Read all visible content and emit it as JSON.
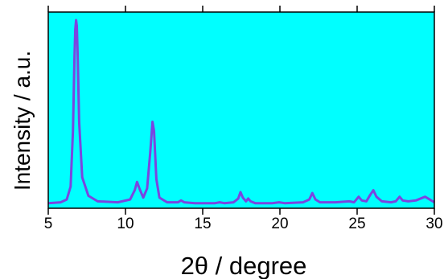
{
  "chart_data": {
    "type": "line",
    "title": "",
    "xlabel": "2θ  / degree",
    "ylabel": "Intensity  / a.u.",
    "xlim": [
      5,
      30
    ],
    "ylim": [
      0,
      100
    ],
    "y_ticks_shown": false,
    "grid": false,
    "plot_background": "#00FFFF",
    "line_color": "#7B45E0",
    "x_ticks": [
      5,
      10,
      15,
      20,
      25,
      30
    ],
    "x_tick_labels": [
      "5",
      "10",
      "15",
      "20",
      "25",
      "30"
    ],
    "series": [
      {
        "x": [
          5.0,
          5.8,
          6.2,
          6.45,
          6.6,
          6.7,
          6.75,
          6.8,
          6.85,
          6.9,
          7.0,
          7.2,
          7.6,
          8.2,
          9.5,
          10.3,
          10.6,
          10.75,
          10.9,
          11.15,
          11.4,
          11.6,
          11.75,
          11.85,
          12.0,
          12.2,
          12.7,
          13.4,
          13.6,
          13.8,
          14.5,
          15.8,
          16.1,
          16.4,
          17.0,
          17.3,
          17.45,
          17.6,
          17.8,
          17.95,
          18.1,
          18.4,
          19.5,
          19.95,
          20.3,
          21.5,
          21.9,
          22.1,
          22.3,
          22.6,
          23.6,
          24.5,
          24.8,
          25.1,
          25.3,
          25.6,
          25.85,
          26.05,
          26.25,
          26.6,
          27.2,
          27.5,
          27.75,
          27.95,
          28.3,
          28.8,
          29.4,
          29.7,
          30.0
        ],
        "y": [
          1,
          1.5,
          3,
          10,
          40,
          80,
          95,
          100,
          97,
          82,
          45,
          15,
          5,
          2,
          1.5,
          3,
          8,
          12.5,
          9,
          4,
          9,
          28,
          45,
          40,
          14,
          4,
          1.5,
          1.5,
          2.5,
          1.5,
          1,
          1,
          1.5,
          1,
          1.5,
          3.5,
          7,
          4,
          2,
          3.5,
          2,
          1,
          1,
          1.5,
          1,
          1.5,
          3,
          6.5,
          3,
          1.5,
          1.5,
          2,
          1.5,
          4.5,
          2.5,
          2,
          5.5,
          8,
          4.5,
          2,
          1.5,
          2,
          4.5,
          2.5,
          2,
          2.5,
          4.5,
          3,
          1.5
        ]
      }
    ]
  }
}
